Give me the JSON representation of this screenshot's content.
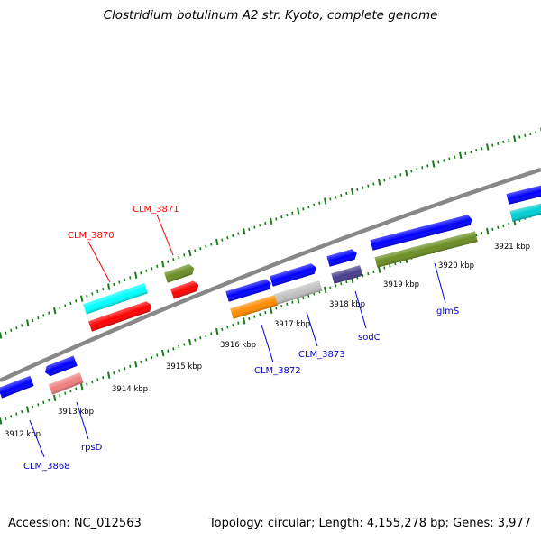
{
  "header": {
    "title": "Clostridium botulinum A2 str. Kyoto, complete genome"
  },
  "footer": {
    "accession": "Accession: NC_012563",
    "summary": "Topology: circular; Length: 4,155,278 bp; Genes: 3,977"
  },
  "map": {
    "backbone_color": "#888888",
    "tick_color": "#1a7a1a",
    "position_labels": [
      "3912 kbp",
      "3913 kbp",
      "3914 kbp",
      "3915 kbp",
      "3916 kbp",
      "3917 kbp",
      "3918 kbp",
      "3919 kbp",
      "3920 kbp",
      "3921 kbp"
    ],
    "forward_genes": [
      {
        "name": "CLM_3870",
        "color": "#00ffff"
      },
      {
        "name": "CLM_3871",
        "color": "#6b8e23"
      },
      {
        "name": "CLM_3872",
        "color": "#0000ff"
      },
      {
        "name": "CLM_3873",
        "color": "#0000ff"
      },
      {
        "name": "sodC",
        "color": "#0000ff"
      },
      {
        "name": "glmS",
        "color": "#0000ff"
      },
      {
        "name": "",
        "color": "#0000ff"
      }
    ],
    "reverse_genes": [
      {
        "name": "CLM_3868",
        "color": "#0000ff"
      },
      {
        "name": "rpsD",
        "color": "#0000ff"
      },
      {
        "name": "",
        "color": "#ff0000"
      },
      {
        "name": "",
        "color": "#ff0000"
      },
      {
        "name": "",
        "color": "#ff8c00"
      },
      {
        "name": "",
        "color": "#c0c0c0"
      },
      {
        "name": "",
        "color": "#483d8b"
      },
      {
        "name": "",
        "color": "#6b8e23"
      },
      {
        "name": "",
        "color": "#00ced1"
      }
    ],
    "labels": [
      {
        "text": "CLM_3870",
        "color": "#ff0000"
      },
      {
        "text": "CLM_3871",
        "color": "#ff0000"
      },
      {
        "text": "CLM_3868",
        "color": "#0000cc"
      },
      {
        "text": "rpsD",
        "color": "#0000cc"
      },
      {
        "text": "CLM_3872",
        "color": "#0000cc"
      },
      {
        "text": "CLM_3873",
        "color": "#0000cc"
      },
      {
        "text": "sodC",
        "color": "#0000cc"
      },
      {
        "text": "glmS",
        "color": "#0000cc"
      }
    ]
  }
}
